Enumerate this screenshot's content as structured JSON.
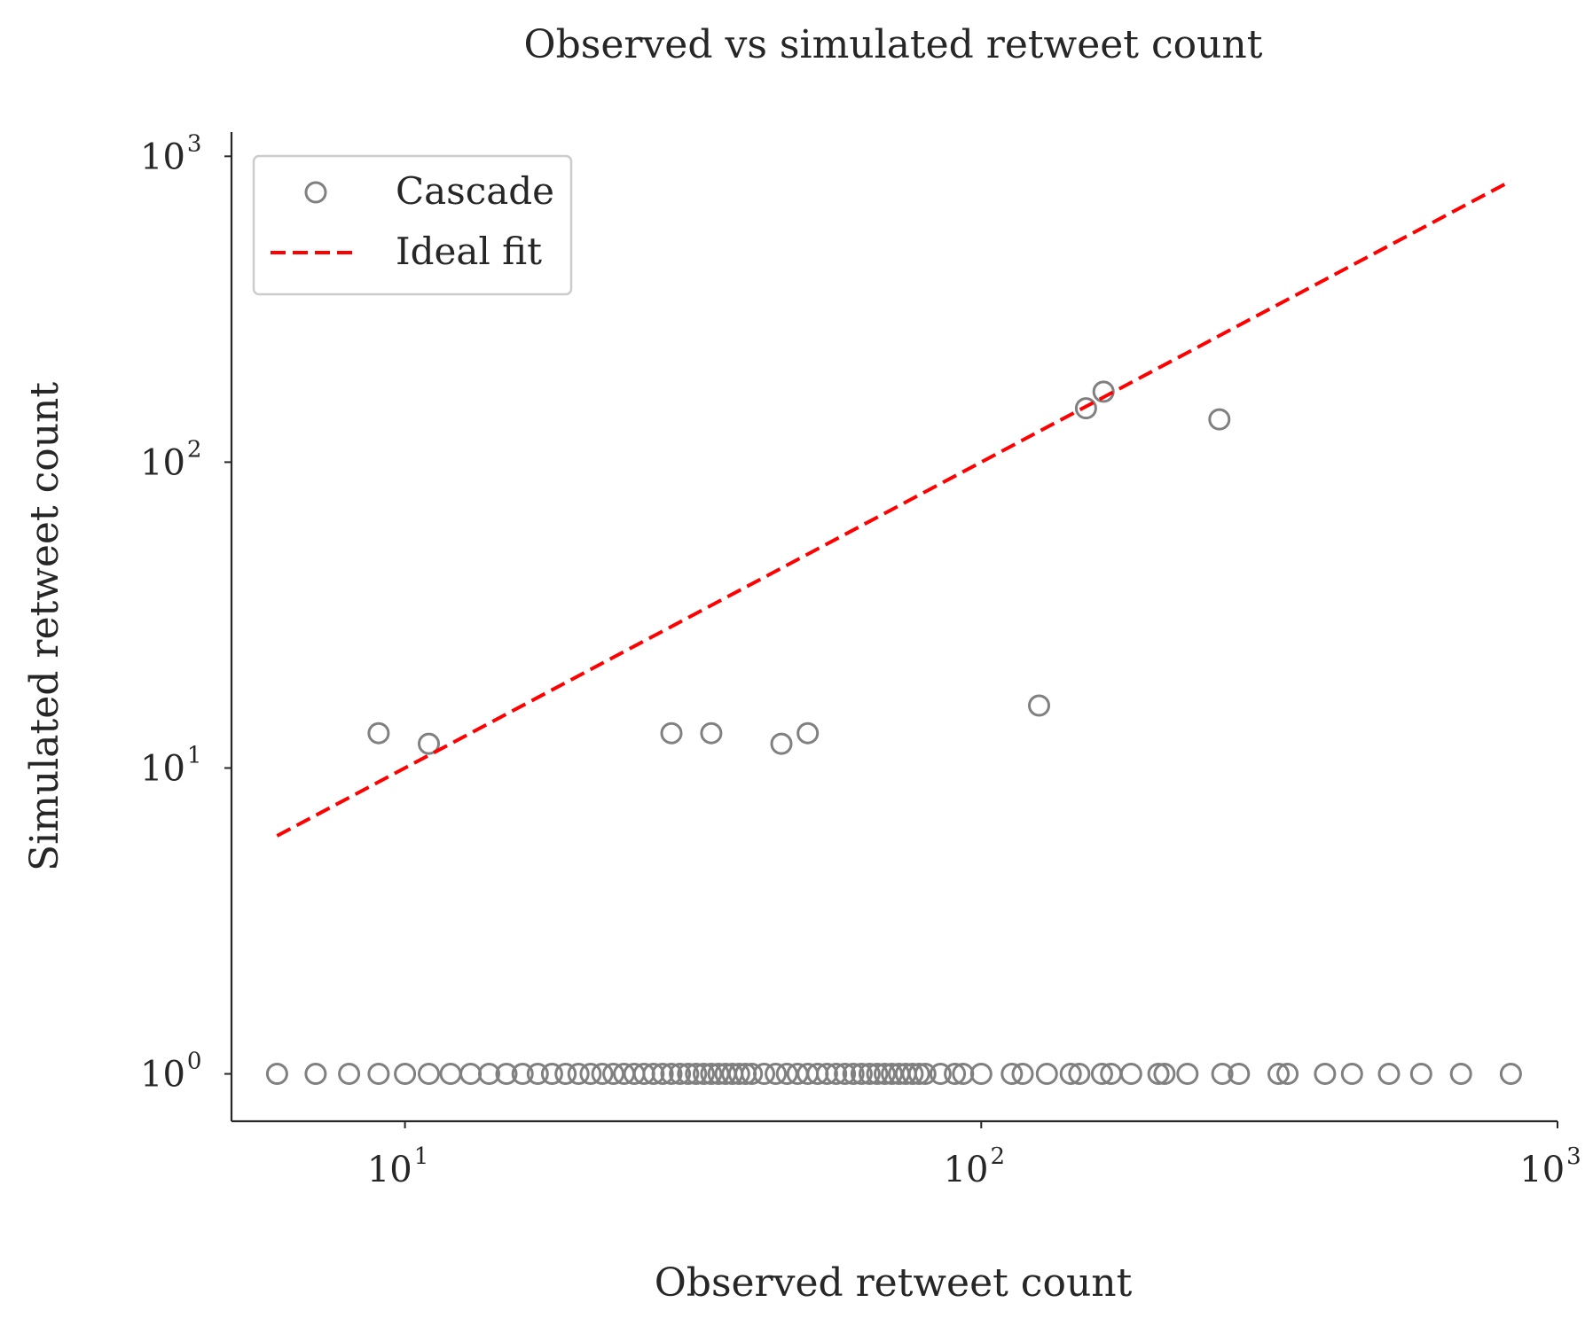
{
  "chart_data": {
    "type": "scatter",
    "title": "Observed vs simulated retweet count",
    "xlabel": "Observed retweet count",
    "ylabel": "Simulated retweet count",
    "xscale": "log",
    "yscale": "log",
    "xlim": [
      5,
      1000
    ],
    "ylim": [
      0.7,
      1200
    ],
    "x_ticks": [
      {
        "value": 10,
        "base": "10",
        "exp": "1"
      },
      {
        "value": 100,
        "base": "10",
        "exp": "2"
      },
      {
        "value": 1000,
        "base": "10",
        "exp": "3"
      }
    ],
    "y_ticks": [
      {
        "value": 1,
        "base": "10",
        "exp": "0"
      },
      {
        "value": 10,
        "base": "10",
        "exp": "1"
      },
      {
        "value": 100,
        "base": "10",
        "exp": "2"
      },
      {
        "value": 1000,
        "base": "10",
        "exp": "3"
      }
    ],
    "grid": false,
    "legend_position": "top-left",
    "series": [
      {
        "name": "Cascade",
        "kind": "scatter",
        "marker": "hollow-circle",
        "color": "#808080",
        "points": [
          {
            "x": 6,
            "y": 1
          },
          {
            "x": 7,
            "y": 1
          },
          {
            "x": 8,
            "y": 1
          },
          {
            "x": 9,
            "y": 1
          },
          {
            "x": 10,
            "y": 1
          },
          {
            "x": 11,
            "y": 1
          },
          {
            "x": 12,
            "y": 1
          },
          {
            "x": 13,
            "y": 1
          },
          {
            "x": 14,
            "y": 1
          },
          {
            "x": 15,
            "y": 1
          },
          {
            "x": 16,
            "y": 1
          },
          {
            "x": 17,
            "y": 1
          },
          {
            "x": 18,
            "y": 1
          },
          {
            "x": 19,
            "y": 1
          },
          {
            "x": 20,
            "y": 1
          },
          {
            "x": 21,
            "y": 1
          },
          {
            "x": 22,
            "y": 1
          },
          {
            "x": 23,
            "y": 1
          },
          {
            "x": 24,
            "y": 1
          },
          {
            "x": 25,
            "y": 1
          },
          {
            "x": 26,
            "y": 1
          },
          {
            "x": 27,
            "y": 1
          },
          {
            "x": 28,
            "y": 1
          },
          {
            "x": 29,
            "y": 1
          },
          {
            "x": 30,
            "y": 1
          },
          {
            "x": 31,
            "y": 1
          },
          {
            "x": 32,
            "y": 1
          },
          {
            "x": 33,
            "y": 1
          },
          {
            "x": 34,
            "y": 1
          },
          {
            "x": 35,
            "y": 1
          },
          {
            "x": 36,
            "y": 1
          },
          {
            "x": 37,
            "y": 1
          },
          {
            "x": 38,
            "y": 1
          },
          {
            "x": 39,
            "y": 1
          },
          {
            "x": 40,
            "y": 1
          },
          {
            "x": 42,
            "y": 1
          },
          {
            "x": 44,
            "y": 1
          },
          {
            "x": 46,
            "y": 1
          },
          {
            "x": 48,
            "y": 1
          },
          {
            "x": 50,
            "y": 1
          },
          {
            "x": 52,
            "y": 1
          },
          {
            "x": 54,
            "y": 1
          },
          {
            "x": 56,
            "y": 1
          },
          {
            "x": 58,
            "y": 1
          },
          {
            "x": 60,
            "y": 1
          },
          {
            "x": 62,
            "y": 1
          },
          {
            "x": 64,
            "y": 1
          },
          {
            "x": 66,
            "y": 1
          },
          {
            "x": 68,
            "y": 1
          },
          {
            "x": 70,
            "y": 1
          },
          {
            "x": 72,
            "y": 1
          },
          {
            "x": 74,
            "y": 1
          },
          {
            "x": 76,
            "y": 1
          },
          {
            "x": 78,
            "y": 1
          },
          {
            "x": 80,
            "y": 1
          },
          {
            "x": 85,
            "y": 1
          },
          {
            "x": 90,
            "y": 1
          },
          {
            "x": 93,
            "y": 1
          },
          {
            "x": 100,
            "y": 1
          },
          {
            "x": 113,
            "y": 1
          },
          {
            "x": 118,
            "y": 1
          },
          {
            "x": 130,
            "y": 1
          },
          {
            "x": 143,
            "y": 1
          },
          {
            "x": 148,
            "y": 1
          },
          {
            "x": 162,
            "y": 1
          },
          {
            "x": 168,
            "y": 1
          },
          {
            "x": 182,
            "y": 1
          },
          {
            "x": 203,
            "y": 1
          },
          {
            "x": 208,
            "y": 1
          },
          {
            "x": 228,
            "y": 1
          },
          {
            "x": 262,
            "y": 1
          },
          {
            "x": 280,
            "y": 1
          },
          {
            "x": 328,
            "y": 1
          },
          {
            "x": 340,
            "y": 1
          },
          {
            "x": 395,
            "y": 1
          },
          {
            "x": 440,
            "y": 1
          },
          {
            "x": 510,
            "y": 1
          },
          {
            "x": 580,
            "y": 1
          },
          {
            "x": 680,
            "y": 1
          },
          {
            "x": 830,
            "y": 1
          },
          {
            "x": 9,
            "y": 13
          },
          {
            "x": 11,
            "y": 12
          },
          {
            "x": 29,
            "y": 13
          },
          {
            "x": 34,
            "y": 13
          },
          {
            "x": 45,
            "y": 12
          },
          {
            "x": 50,
            "y": 13
          },
          {
            "x": 126,
            "y": 16
          },
          {
            "x": 152,
            "y": 150
          },
          {
            "x": 163,
            "y": 170
          },
          {
            "x": 259,
            "y": 138
          }
        ]
      },
      {
        "name": "Ideal fit",
        "kind": "line",
        "style": "dashed",
        "color": "#ff0000",
        "points": [
          {
            "x": 6,
            "y": 6
          },
          {
            "x": 830,
            "y": 830
          }
        ]
      }
    ]
  }
}
